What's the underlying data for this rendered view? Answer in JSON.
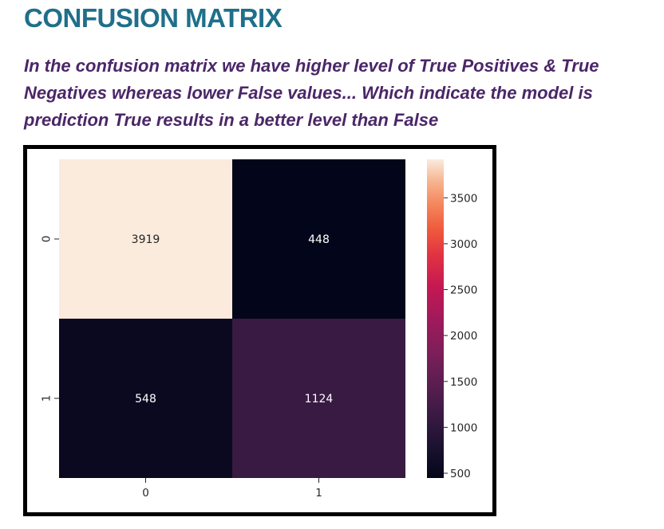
{
  "header": {
    "title": "CONFUSION MATRIX",
    "subtitle_lines": [
      "In the confusion matrix we have higher level of True Positives & True",
      "Negatives whereas lower False values... Which indicate the model is",
      "prediction True results in a better level than False"
    ]
  },
  "colors": {
    "title": "#1f6f8b",
    "subtitle": "#4b2668",
    "frame": "#000000"
  },
  "chart_data": {
    "type": "heatmap",
    "rows": [
      "0",
      "1"
    ],
    "cols": [
      "0",
      "1"
    ],
    "values": [
      [
        3919,
        448
      ],
      [
        548,
        1124
      ]
    ],
    "colormap": "rocket",
    "colorbar": {
      "range": [
        448,
        3919
      ],
      "ticks": [
        500,
        1000,
        1500,
        2000,
        2500,
        3000,
        3500
      ]
    },
    "annotations": true,
    "xlabel": "",
    "ylabel": "",
    "title": ""
  }
}
